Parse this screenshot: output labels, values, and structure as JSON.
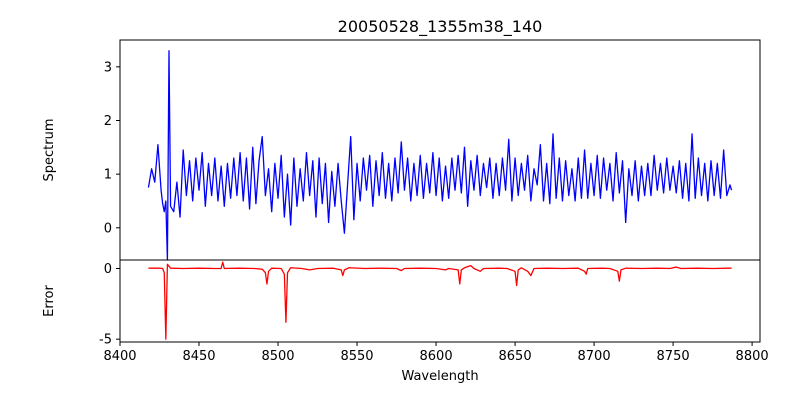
{
  "chart_data": [
    {
      "type": "line",
      "panel": "top",
      "title": "20050528_1355m38_140",
      "xlabel": "",
      "ylabel": "Spectrum",
      "xlim": [
        8400,
        8805
      ],
      "ylim": [
        -0.6,
        3.5
      ],
      "yticks": [
        0,
        1,
        2,
        3
      ],
      "grid": false,
      "series": [
        {
          "color": "#0000ff",
          "points": [
            [
              8418,
              0.75
            ],
            [
              8420,
              1.1
            ],
            [
              8422,
              0.85
            ],
            [
              8424,
              1.55
            ],
            [
              8426,
              0.7
            ],
            [
              8427,
              0.45
            ],
            [
              8428,
              0.3
            ],
            [
              8429,
              0.5
            ],
            [
              8430,
              -0.6
            ],
            [
              8431,
              3.3
            ],
            [
              8432,
              0.4
            ],
            [
              8434,
              0.3
            ],
            [
              8436,
              0.85
            ],
            [
              8438,
              0.2
            ],
            [
              8440,
              1.45
            ],
            [
              8442,
              0.6
            ],
            [
              8444,
              1.25
            ],
            [
              8446,
              0.5
            ],
            [
              8448,
              1.3
            ],
            [
              8450,
              0.7
            ],
            [
              8452,
              1.4
            ],
            [
              8454,
              0.4
            ],
            [
              8456,
              1.2
            ],
            [
              8458,
              0.6
            ],
            [
              8460,
              1.3
            ],
            [
              8462,
              0.5
            ],
            [
              8464,
              1.15
            ],
            [
              8466,
              0.4
            ],
            [
              8468,
              1.2
            ],
            [
              8470,
              0.55
            ],
            [
              8472,
              1.3
            ],
            [
              8474,
              0.6
            ],
            [
              8476,
              1.4
            ],
            [
              8478,
              0.5
            ],
            [
              8480,
              1.3
            ],
            [
              8482,
              0.35
            ],
            [
              8484,
              1.5
            ],
            [
              8486,
              0.45
            ],
            [
              8488,
              1.25
            ],
            [
              8490,
              1.7
            ],
            [
              8492,
              0.6
            ],
            [
              8494,
              1.1
            ],
            [
              8496,
              0.3
            ],
            [
              8498,
              1.2
            ],
            [
              8500,
              0.55
            ],
            [
              8502,
              1.35
            ],
            [
              8504,
              0.2
            ],
            [
              8506,
              1.0
            ],
            [
              8508,
              0.05
            ],
            [
              8510,
              1.3
            ],
            [
              8512,
              0.4
            ],
            [
              8514,
              1.1
            ],
            [
              8516,
              0.5
            ],
            [
              8518,
              1.4
            ],
            [
              8520,
              0.6
            ],
            [
              8522,
              1.25
            ],
            [
              8524,
              0.2
            ],
            [
              8526,
              1.3
            ],
            [
              8528,
              0.45
            ],
            [
              8530,
              1.2
            ],
            [
              8532,
              0.1
            ],
            [
              8534,
              1.05
            ],
            [
              8536,
              0.4
            ],
            [
              8538,
              1.2
            ],
            [
              8540,
              0.5
            ],
            [
              8542,
              -0.1
            ],
            [
              8544,
              0.8
            ],
            [
              8546,
              1.7
            ],
            [
              8548,
              0.15
            ],
            [
              8550,
              1.2
            ],
            [
              8552,
              0.5
            ],
            [
              8554,
              1.3
            ],
            [
              8556,
              0.7
            ],
            [
              8558,
              1.35
            ],
            [
              8560,
              0.4
            ],
            [
              8562,
              1.25
            ],
            [
              8564,
              0.6
            ],
            [
              8566,
              1.4
            ],
            [
              8568,
              0.55
            ],
            [
              8570,
              1.2
            ],
            [
              8572,
              0.5
            ],
            [
              8574,
              1.3
            ],
            [
              8576,
              0.65
            ],
            [
              8578,
              1.6
            ],
            [
              8580,
              0.7
            ],
            [
              8582,
              1.3
            ],
            [
              8584,
              0.5
            ],
            [
              8586,
              1.2
            ],
            [
              8588,
              0.6
            ],
            [
              8590,
              1.35
            ],
            [
              8592,
              0.55
            ],
            [
              8594,
              1.2
            ],
            [
              8596,
              0.65
            ],
            [
              8598,
              1.4
            ],
            [
              8600,
              0.6
            ],
            [
              8602,
              1.3
            ],
            [
              8604,
              0.5
            ],
            [
              8606,
              1.15
            ],
            [
              8608,
              0.55
            ],
            [
              8610,
              1.3
            ],
            [
              8612,
              0.7
            ],
            [
              8614,
              1.35
            ],
            [
              8616,
              0.65
            ],
            [
              8618,
              1.5
            ],
            [
              8620,
              0.4
            ],
            [
              8622,
              1.25
            ],
            [
              8624,
              0.7
            ],
            [
              8626,
              1.35
            ],
            [
              8628,
              0.6
            ],
            [
              8630,
              1.2
            ],
            [
              8632,
              0.75
            ],
            [
              8634,
              1.3
            ],
            [
              8636,
              0.55
            ],
            [
              8638,
              1.2
            ],
            [
              8640,
              0.6
            ],
            [
              8642,
              1.3
            ],
            [
              8644,
              0.7
            ],
            [
              8646,
              1.65
            ],
            [
              8648,
              0.5
            ],
            [
              8650,
              1.3
            ],
            [
              8652,
              0.6
            ],
            [
              8654,
              1.2
            ],
            [
              8656,
              0.7
            ],
            [
              8658,
              1.35
            ],
            [
              8660,
              0.5
            ],
            [
              8662,
              1.1
            ],
            [
              8664,
              0.8
            ],
            [
              8666,
              1.55
            ],
            [
              8668,
              0.5
            ],
            [
              8670,
              1.2
            ],
            [
              8672,
              0.45
            ],
            [
              8674,
              1.75
            ],
            [
              8676,
              0.55
            ],
            [
              8678,
              1.3
            ],
            [
              8680,
              0.5
            ],
            [
              8682,
              1.25
            ],
            [
              8684,
              0.6
            ],
            [
              8686,
              1.1
            ],
            [
              8688,
              0.5
            ],
            [
              8690,
              1.3
            ],
            [
              8692,
              0.55
            ],
            [
              8694,
              1.45
            ],
            [
              8696,
              0.55
            ],
            [
              8698,
              1.2
            ],
            [
              8700,
              0.6
            ],
            [
              8702,
              1.35
            ],
            [
              8704,
              0.55
            ],
            [
              8706,
              1.3
            ],
            [
              8708,
              0.7
            ],
            [
              8710,
              1.2
            ],
            [
              8712,
              0.5
            ],
            [
              8714,
              1.4
            ],
            [
              8716,
              0.65
            ],
            [
              8718,
              1.25
            ],
            [
              8720,
              0.1
            ],
            [
              8722,
              1.1
            ],
            [
              8724,
              0.6
            ],
            [
              8726,
              1.25
            ],
            [
              8728,
              0.5
            ],
            [
              8730,
              1.15
            ],
            [
              8732,
              0.6
            ],
            [
              8734,
              1.2
            ],
            [
              8736,
              0.6
            ],
            [
              8738,
              1.35
            ],
            [
              8740,
              0.7
            ],
            [
              8742,
              1.2
            ],
            [
              8744,
              0.65
            ],
            [
              8746,
              1.3
            ],
            [
              8748,
              0.7
            ],
            [
              8750,
              1.15
            ],
            [
              8752,
              0.65
            ],
            [
              8754,
              1.25
            ],
            [
              8756,
              0.55
            ],
            [
              8758,
              1.2
            ],
            [
              8760,
              0.5
            ],
            [
              8762,
              1.75
            ],
            [
              8764,
              0.55
            ],
            [
              8766,
              1.3
            ],
            [
              8768,
              0.6
            ],
            [
              8770,
              1.2
            ],
            [
              8772,
              0.5
            ],
            [
              8774,
              1.25
            ],
            [
              8776,
              0.6
            ],
            [
              8778,
              1.2
            ],
            [
              8780,
              0.55
            ],
            [
              8782,
              1.45
            ],
            [
              8784,
              0.6
            ],
            [
              8786,
              0.8
            ],
            [
              8787,
              0.7
            ]
          ]
        }
      ]
    },
    {
      "type": "line",
      "panel": "bottom",
      "title": "",
      "xlabel": "Wavelength",
      "ylabel": "Error",
      "xlim": [
        8400,
        8805
      ],
      "ylim": [
        -5.2,
        0.6
      ],
      "xticks": [
        8400,
        8450,
        8500,
        8550,
        8600,
        8650,
        8700,
        8750,
        8800
      ],
      "yticks": [
        0,
        -5
      ],
      "grid": false,
      "series": [
        {
          "color": "#ff0000",
          "points": [
            [
              8418,
              0.02
            ],
            [
              8425,
              0.02
            ],
            [
              8427,
              0.0
            ],
            [
              8428,
              -0.3
            ],
            [
              8429,
              -5.0
            ],
            [
              8430,
              0.3
            ],
            [
              8432,
              0.02
            ],
            [
              8440,
              0.0
            ],
            [
              8450,
              0.02
            ],
            [
              8460,
              0.0
            ],
            [
              8464,
              0.0
            ],
            [
              8465,
              0.45
            ],
            [
              8466,
              0.0
            ],
            [
              8475,
              0.02
            ],
            [
              8485,
              0.0
            ],
            [
              8490,
              -0.05
            ],
            [
              8492,
              -0.3
            ],
            [
              8493,
              -1.1
            ],
            [
              8494,
              -0.2
            ],
            [
              8496,
              0.02
            ],
            [
              8502,
              0.0
            ],
            [
              8504,
              -0.4
            ],
            [
              8505,
              -3.8
            ],
            [
              8506,
              -0.3
            ],
            [
              8508,
              0.05
            ],
            [
              8515,
              0.0
            ],
            [
              8520,
              -0.1
            ],
            [
              8525,
              0.0
            ],
            [
              8535,
              0.02
            ],
            [
              8540,
              -0.1
            ],
            [
              8541,
              -0.5
            ],
            [
              8542,
              -0.1
            ],
            [
              8545,
              0.05
            ],
            [
              8555,
              0.0
            ],
            [
              8565,
              0.02
            ],
            [
              8575,
              0.0
            ],
            [
              8578,
              -0.15
            ],
            [
              8580,
              0.0
            ],
            [
              8590,
              0.02
            ],
            [
              8600,
              0.0
            ],
            [
              8606,
              -0.1
            ],
            [
              8608,
              0.0
            ],
            [
              8614,
              -0.1
            ],
            [
              8615,
              -1.1
            ],
            [
              8616,
              -0.1
            ],
            [
              8618,
              0.05
            ],
            [
              8622,
              0.2
            ],
            [
              8624,
              0.0
            ],
            [
              8628,
              -0.2
            ],
            [
              8630,
              0.0
            ],
            [
              8640,
              0.02
            ],
            [
              8645,
              0.0
            ],
            [
              8650,
              -0.2
            ],
            [
              8651,
              -1.2
            ],
            [
              8652,
              -0.1
            ],
            [
              8654,
              0.05
            ],
            [
              8658,
              -0.2
            ],
            [
              8660,
              -0.5
            ],
            [
              8662,
              0.0
            ],
            [
              8670,
              0.02
            ],
            [
              8680,
              0.0
            ],
            [
              8690,
              0.02
            ],
            [
              8694,
              -0.2
            ],
            [
              8695,
              -0.4
            ],
            [
              8696,
              0.0
            ],
            [
              8705,
              0.02
            ],
            [
              8710,
              0.0
            ],
            [
              8715,
              -0.2
            ],
            [
              8716,
              -0.9
            ],
            [
              8717,
              -0.1
            ],
            [
              8720,
              0.02
            ],
            [
              8730,
              0.0
            ],
            [
              8740,
              0.02
            ],
            [
              8748,
              0.0
            ],
            [
              8752,
              0.1
            ],
            [
              8755,
              0.0
            ],
            [
              8765,
              0.02
            ],
            [
              8775,
              0.0
            ],
            [
              8785,
              0.02
            ],
            [
              8787,
              0.02
            ]
          ]
        }
      ]
    }
  ]
}
